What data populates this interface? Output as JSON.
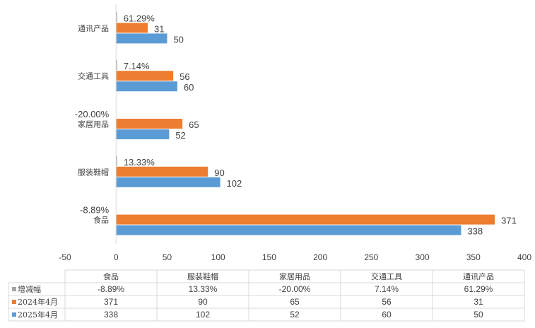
{
  "chart_data": {
    "type": "bar",
    "orientation": "horizontal",
    "categories": [
      "食品",
      "服装鞋帽",
      "家居用品",
      "交通工具",
      "通讯产品"
    ],
    "series": [
      {
        "name": "增减幅",
        "values": [
          -8.89,
          13.33,
          -20.0,
          7.14,
          61.29
        ],
        "labels": [
          "-8.89%",
          "13.33%",
          "-20.00%",
          "7.14%",
          "61.29%"
        ],
        "color": "#A5A5A5"
      },
      {
        "name": "2024年4月",
        "values": [
          371,
          90,
          65,
          56,
          31
        ],
        "labels": [
          "371",
          "90",
          "65",
          "56",
          "31"
        ],
        "color": "#ED7D31"
      },
      {
        "name": "2025年4月",
        "values": [
          338,
          102,
          52,
          60,
          50
        ],
        "labels": [
          "338",
          "102",
          "52",
          "60",
          "50"
        ],
        "color": "#5B9BD5"
      }
    ],
    "xlim": [
      -50,
      400
    ],
    "xticks": [
      -50,
      0,
      50,
      100,
      150,
      200,
      250,
      300,
      350,
      400
    ],
    "gridlines": false,
    "legend": "data-table-below",
    "title": "",
    "xlabel": "",
    "ylabel": ""
  }
}
